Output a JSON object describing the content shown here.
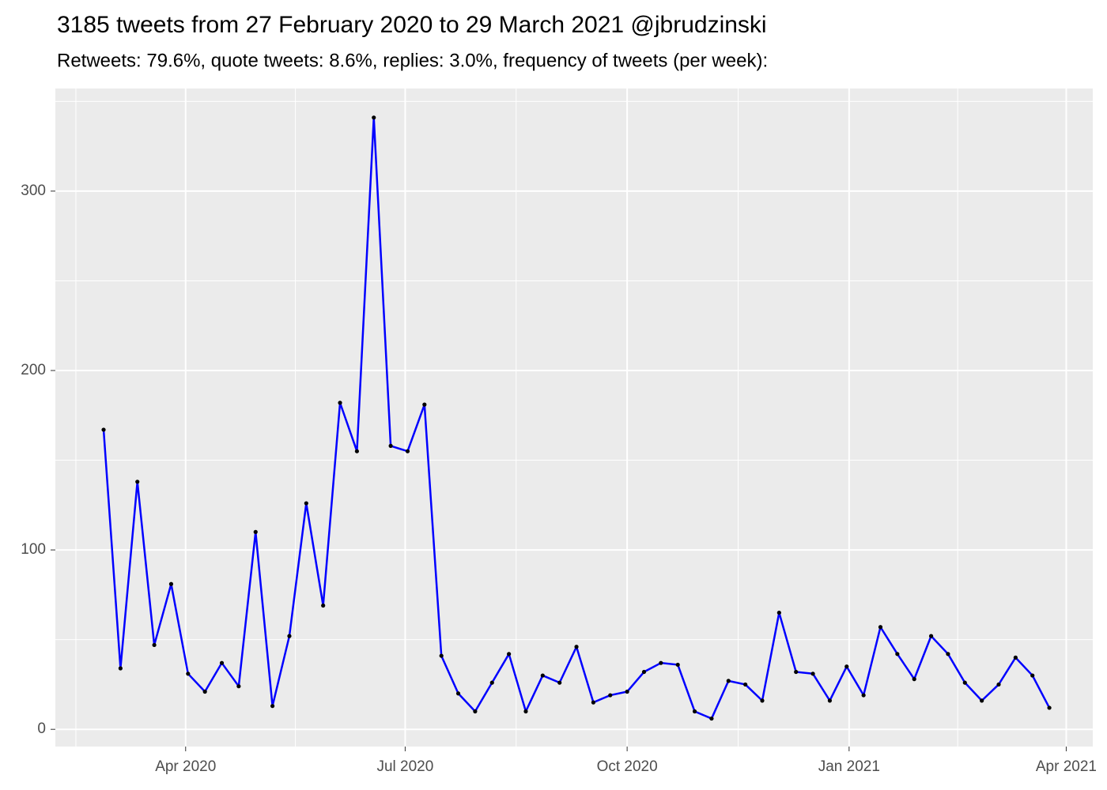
{
  "chart_data": {
    "type": "line",
    "title": "3185 tweets from 27 February 2020 to 29 March 2021 @jbrudzinski",
    "subtitle": "Retweets: 79.6%, quote tweets: 8.6%, replies: 3.0%, frequency of tweets (per week):",
    "x": [
      "2020-02-27",
      "2020-03-05",
      "2020-03-12",
      "2020-03-19",
      "2020-03-26",
      "2020-04-02",
      "2020-04-09",
      "2020-04-16",
      "2020-04-23",
      "2020-04-30",
      "2020-05-07",
      "2020-05-14",
      "2020-05-21",
      "2020-05-28",
      "2020-06-04",
      "2020-06-11",
      "2020-06-18",
      "2020-06-25",
      "2020-07-02",
      "2020-07-09",
      "2020-07-16",
      "2020-07-23",
      "2020-07-30",
      "2020-08-06",
      "2020-08-13",
      "2020-08-20",
      "2020-08-27",
      "2020-09-03",
      "2020-09-10",
      "2020-09-17",
      "2020-09-24",
      "2020-10-01",
      "2020-10-08",
      "2020-10-15",
      "2020-10-22",
      "2020-10-29",
      "2020-11-05",
      "2020-11-12",
      "2020-11-19",
      "2020-11-26",
      "2020-12-03",
      "2020-12-10",
      "2020-12-17",
      "2020-12-24",
      "2020-12-31",
      "2021-01-07",
      "2021-01-14",
      "2021-01-21",
      "2021-01-28",
      "2021-02-04",
      "2021-02-11",
      "2021-02-18",
      "2021-02-25",
      "2021-03-04",
      "2021-03-11",
      "2021-03-18",
      "2021-03-25"
    ],
    "series": [
      {
        "color": "#0000ff",
        "point_color": "#000000",
        "values": [
          167,
          34,
          138,
          47,
          81,
          31,
          21,
          37,
          24,
          110,
          13,
          52,
          126,
          69,
          182,
          155,
          341,
          158,
          155,
          181,
          41,
          20,
          10,
          26,
          42,
          10,
          30,
          26,
          46,
          15,
          19,
          21,
          32,
          37,
          36,
          10,
          6,
          27,
          25,
          16,
          65,
          32,
          31,
          16,
          35,
          19,
          57,
          42,
          28,
          52,
          42,
          26,
          16,
          25,
          40,
          30,
          12
        ]
      }
    ],
    "xlim": [
      "2020-02-07",
      "2021-04-12"
    ],
    "xticks": [
      {
        "value": "2020-04-01",
        "label": "Apr 2020"
      },
      {
        "value": "2020-07-01",
        "label": "Jul 2020"
      },
      {
        "value": "2020-10-01",
        "label": "Oct 2020"
      },
      {
        "value": "2021-01-01",
        "label": "Jan 2021"
      },
      {
        "value": "2021-04-01",
        "label": "Apr 2021"
      }
    ],
    "ylim": [
      -9.6,
      357.2
    ],
    "yticks": [
      0,
      100,
      200,
      300
    ],
    "grid": true
  }
}
